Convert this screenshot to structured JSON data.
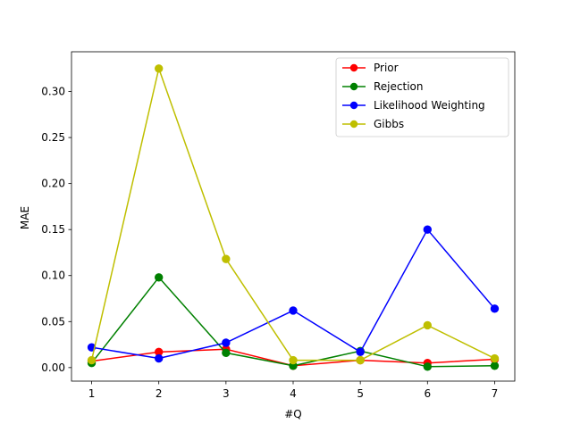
{
  "chart_data": {
    "type": "line",
    "title": "",
    "xlabel": "#Q",
    "ylabel": "MAE",
    "x": [
      1,
      2,
      3,
      4,
      5,
      6,
      7
    ],
    "xlim": [
      0.7,
      7.3
    ],
    "ylim": [
      -0.0147,
      0.3432
    ],
    "xticks": [
      1,
      2,
      3,
      4,
      5,
      6,
      7
    ],
    "yticks": [
      0.0,
      0.05,
      0.1,
      0.15,
      0.2,
      0.25,
      0.3
    ],
    "ytick_labels": [
      "0.00",
      "0.05",
      "0.10",
      "0.15",
      "0.20",
      "0.25",
      "0.30"
    ],
    "grid": false,
    "legend_position": "upper right",
    "series": [
      {
        "name": "Prior",
        "color": "#ff0000",
        "marker": "circle",
        "values": [
          0.007,
          0.017,
          0.02,
          0.002,
          0.008,
          0.005,
          0.009
        ]
      },
      {
        "name": "Rejection",
        "color": "#008000",
        "marker": "circle",
        "values": [
          0.005,
          0.098,
          0.016,
          0.002,
          0.018,
          0.001,
          0.002
        ]
      },
      {
        "name": "Likelihood Weighting",
        "color": "#0000ff",
        "marker": "circle",
        "values": [
          0.022,
          0.01,
          0.027,
          0.062,
          0.017,
          0.15,
          0.064
        ]
      },
      {
        "name": "Gibbs",
        "color": "#bfbf00",
        "marker": "circle",
        "values": [
          0.008,
          0.325,
          0.118,
          0.008,
          0.008,
          0.046,
          0.01
        ]
      }
    ]
  }
}
